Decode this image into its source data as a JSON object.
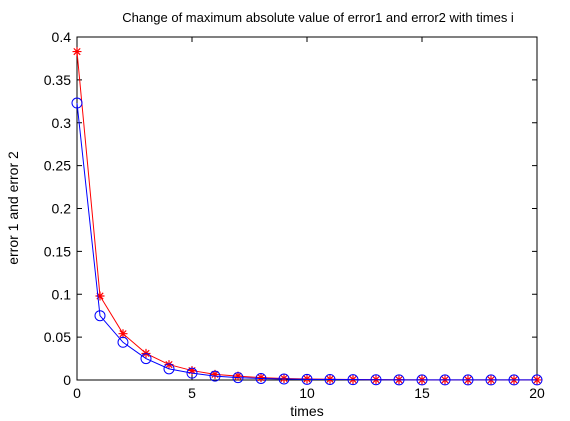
{
  "chart_data": {
    "type": "line",
    "title": "Change of maximum absolute value of error1 and error2 with times i",
    "xlabel": "times",
    "ylabel": "error 1 and error 2",
    "xlim": [
      0,
      20
    ],
    "ylim": [
      0,
      0.4
    ],
    "xticks": [
      "0",
      "5",
      "10",
      "15",
      "20"
    ],
    "yticks": [
      "0",
      "0.05",
      "0.1",
      "0.15",
      "0.2",
      "0.25",
      "0.3",
      "0.35",
      "0.4"
    ],
    "grid": false,
    "x": [
      0,
      1,
      2,
      3,
      4,
      5,
      6,
      7,
      8,
      9,
      10,
      11,
      12,
      13,
      14,
      15,
      16,
      17,
      18,
      19,
      20
    ],
    "series": [
      {
        "color": "#ff0000",
        "marker": "star",
        "values": [
          0.383,
          0.098,
          0.054,
          0.031,
          0.018,
          0.011,
          0.0065,
          0.0045,
          0.0028,
          0.0018,
          0.0012,
          0.0009,
          0.0006,
          0.0004,
          0.0003,
          0.0002,
          0.0002,
          0.0001,
          0.0001,
          0.0001,
          0.0001
        ]
      },
      {
        "color": "#0000ff",
        "marker": "circle",
        "values": [
          0.323,
          0.075,
          0.044,
          0.025,
          0.013,
          0.008,
          0.0045,
          0.0028,
          0.0018,
          0.0012,
          0.0008,
          0.0006,
          0.0004,
          0.0003,
          0.0002,
          0.0001,
          0.0001,
          0.0001,
          0.0001,
          0.0001,
          0.0001
        ]
      }
    ]
  }
}
